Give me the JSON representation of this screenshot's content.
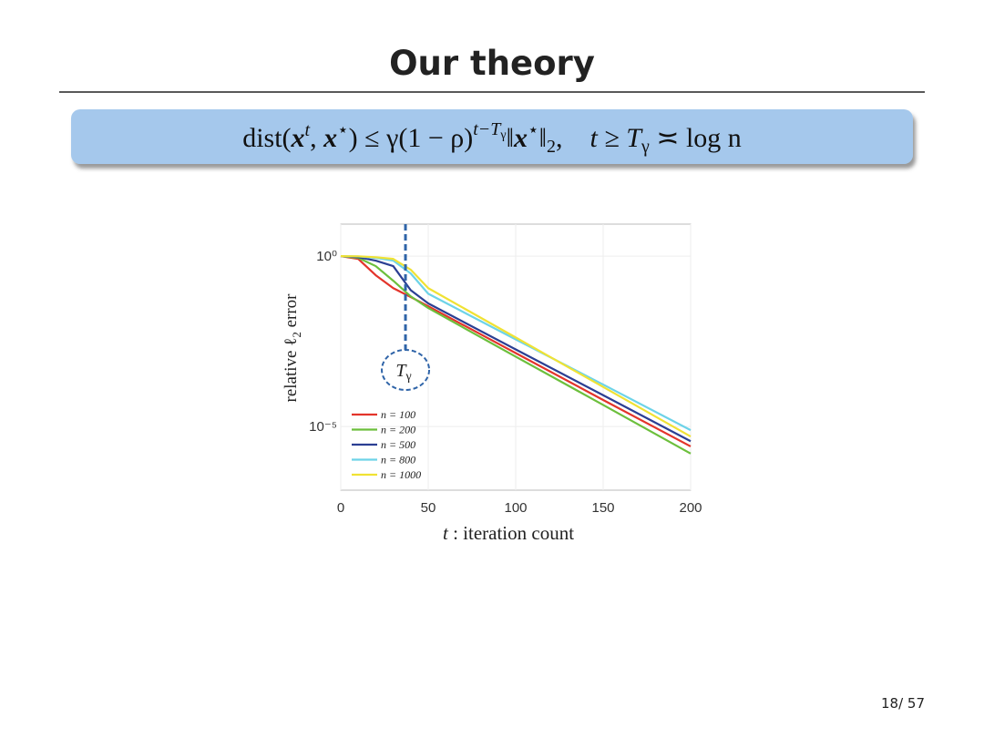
{
  "slide": {
    "title": "Our theory",
    "page": "18/ 57",
    "formula": [
      "dist(",
      "x",
      "t",
      ", ",
      "x",
      "⋆",
      ") ≤ γ(1 − ρ)",
      "t−T",
      "γ",
      "‖",
      "x",
      "⋆",
      "‖",
      "2",
      ",",
      "t ≥ T",
      "γ",
      " ≍ log n"
    ]
  },
  "chart_data": {
    "type": "line",
    "xlabel": [
      "t",
      " : iteration count"
    ],
    "ylabel": [
      "relative ℓ",
      "2",
      " error"
    ],
    "x": [
      0,
      10,
      20,
      30,
      40,
      50,
      100,
      150,
      200
    ],
    "series": [
      {
        "name": "n = 100",
        "color": "#e3342b",
        "values": [
          1,
          0.83,
          0.275,
          0.115,
          0.063,
          0.034,
          0.00143,
          6e-05,
          2.6e-06
        ]
      },
      {
        "name": "n = 200",
        "color": "#6cbf3c",
        "values": [
          1,
          0.89,
          0.51,
          0.19,
          0.066,
          0.03,
          0.00112,
          4.3e-05,
          1.6e-06
        ]
      },
      {
        "name": "n = 500",
        "color": "#2b3f93",
        "values": [
          1,
          0.93,
          0.74,
          0.51,
          0.1,
          0.041,
          0.00183,
          8.3e-05,
          3.7e-06
        ]
      },
      {
        "name": "n = 800",
        "color": "#6dd3e8",
        "values": [
          1,
          0.98,
          0.89,
          0.74,
          0.31,
          0.079,
          0.0036,
          0.00017,
          7.8e-06
        ]
      },
      {
        "name": "n = 1000",
        "color": "#f0e234",
        "values": [
          1,
          0.99,
          0.93,
          0.83,
          0.4,
          0.115,
          0.0041,
          0.000145,
          5.1e-06
        ]
      }
    ],
    "xlim": [
      0,
      200
    ],
    "xticks": [
      0,
      50,
      100,
      150,
      200
    ],
    "ylim": [
      1.35e-07,
      8.7
    ],
    "yticks": [
      {
        "value": 1,
        "label": "10⁰"
      },
      {
        "value": 1e-05,
        "label": "10⁻⁵"
      }
    ],
    "log_y": true,
    "grid": true,
    "legend": "lower left",
    "annotation": {
      "x": 37,
      "text": "T",
      "sub": "γ"
    }
  }
}
